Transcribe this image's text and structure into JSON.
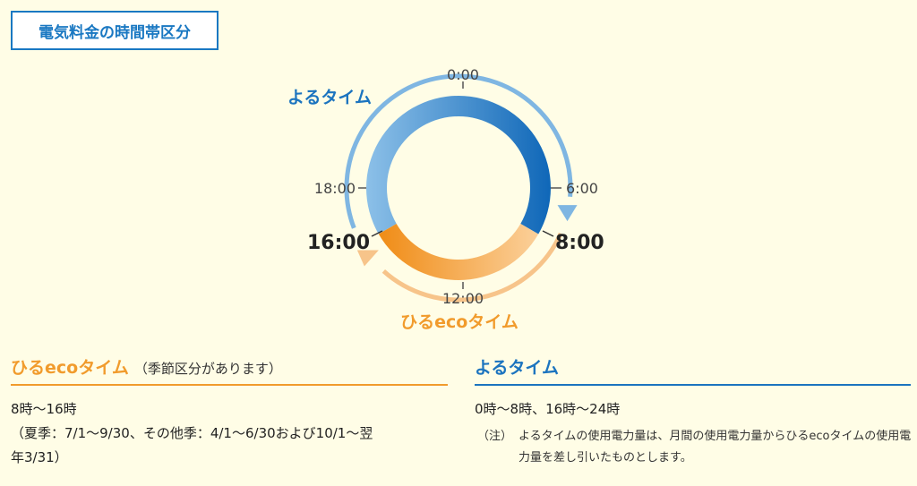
{
  "header": {
    "title": "電気料金の時間帯区分"
  },
  "dial": {
    "night_label": "よるタイム",
    "day_label": "ひるecoタイム",
    "ticks": {
      "top": "0:00",
      "right": "6:00",
      "left": "18:00",
      "bottom": "12:00",
      "switch_right": "8:00",
      "switch_left": "16:00"
    },
    "colors": {
      "night": "#1c74bf",
      "day": "#f19b2c",
      "night_arrow": "#7fb6e2",
      "day_arrow": "#f7c48a"
    }
  },
  "day_section": {
    "title": "ひるecoタイム",
    "subtitle": "（季節区分があります）",
    "hours": "8時〜16時",
    "seasons_line1": "（夏季：7/1〜9/30、その他季：4/1〜6/30および10/1〜翌",
    "seasons_line2": "年3/31）"
  },
  "night_section": {
    "title": "よるタイム",
    "hours": "0時〜8時、16時〜24時",
    "note_tag": "（注）",
    "note_text": "よるタイムの使用電力量は、月間の使用電力量からひるecoタイムの使用電力量を差し引いたものとします。"
  }
}
